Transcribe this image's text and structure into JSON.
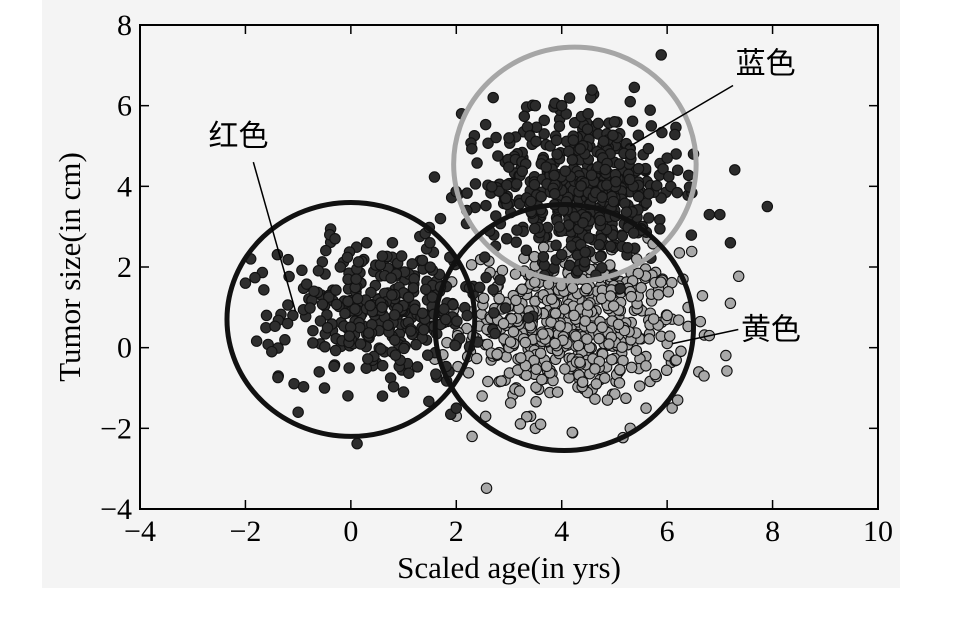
{
  "chart_data": {
    "type": "scatter",
    "title": "",
    "xlabel": "Scaled age(in yrs)",
    "ylabel": "Tumor size(in cm)",
    "xlim": [
      -4,
      10
    ],
    "ylim": [
      -4,
      8
    ],
    "xticks": [
      "−4",
      "−2",
      "0",
      "2",
      "4",
      "6",
      "8",
      "10"
    ],
    "yticks": [
      "−4",
      "−2",
      "0",
      "2",
      "4",
      "6",
      "8"
    ],
    "grid": false,
    "series": [
      {
        "name": "红色",
        "color": "#2e2e2e",
        "center": [
          0.6,
          0.9
        ],
        "spread": [
          0.95,
          0.85
        ],
        "count": 320,
        "x": [
          -1.9,
          -2.0,
          -1.5,
          -1.6,
          -1.1,
          -1.2,
          -1.0,
          -0.6,
          -0.5,
          -0.7,
          -0.4,
          -0.3,
          0.1,
          -0.2,
          0.3,
          0.6,
          1.0,
          1.5,
          1.7,
          2.0,
          1.8
        ],
        "y": [
          2.2,
          1.6,
          -0.1,
          0.8,
          0.8,
          0.6,
          -1.6,
          -0.6,
          -1.0,
          1.4,
          2.8,
          2.7,
          1.7,
          2.0,
          2.6,
          -1.2,
          -1.1,
          2.6,
          3.2,
          -1.5,
          0.7
        ]
      },
      {
        "name": "蓝色",
        "color": "#2b2b2b",
        "center": [
          4.4,
          4.0
        ],
        "spread": [
          0.9,
          0.95
        ],
        "count": 520,
        "x": [
          2.1,
          2.2,
          2.7,
          3.0,
          3.5,
          4.0,
          4.5,
          5.0,
          5.3,
          5.7,
          6.0,
          6.2,
          6.5,
          6.8,
          7.0,
          7.2,
          7.9
        ],
        "y": [
          5.8,
          3.4,
          6.2,
          5.2,
          6.0,
          6.0,
          5.8,
          5.6,
          6.1,
          5.5,
          4.7,
          4.4,
          4.8,
          3.3,
          3.3,
          2.6,
          3.5
        ]
      },
      {
        "name": "黄色",
        "color": "#a8a8a8",
        "center": [
          4.2,
          0.5
        ],
        "spread": [
          1.05,
          0.95
        ],
        "count": 560,
        "x": [
          2.3,
          2.0,
          3.5,
          3.6,
          4.2,
          5.3,
          5.6,
          6.2,
          6.6,
          6.7,
          6.8,
          7.2,
          6.3,
          6.0
        ],
        "y": [
          -2.2,
          -1.7,
          -2.0,
          -1.9,
          -2.1,
          -2.0,
          -1.5,
          -1.3,
          -0.6,
          -0.7,
          0.3,
          1.1,
          1.7,
          0.8
        ]
      }
    ],
    "annotations": [
      {
        "text": "红色",
        "target_series": "红色"
      },
      {
        "text": "蓝色",
        "target_series": "蓝色"
      },
      {
        "text": "黄色",
        "target_series": "黄色"
      }
    ],
    "circles": [
      {
        "series": "红色",
        "cx": 0.0,
        "cy": 0.7,
        "rx": 2.35,
        "ry": 2.9,
        "color": "#111111"
      },
      {
        "series": "蓝色",
        "cx": 4.25,
        "cy": 4.55,
        "rx": 2.3,
        "ry": 2.9,
        "color": "#a6a6a6"
      },
      {
        "series": "黄色",
        "cx": 4.05,
        "cy": 0.5,
        "rx": 2.45,
        "ry": 3.05,
        "color": "#111111"
      }
    ]
  }
}
